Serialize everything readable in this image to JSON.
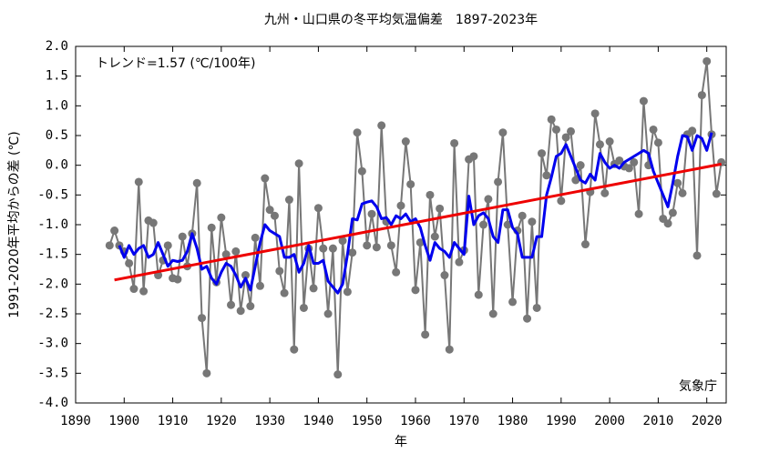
{
  "chart_data": {
    "type": "line",
    "title": "九州・山口県の冬平均気温偏差　1897-2023年",
    "xlabel": "年",
    "ylabel": "1991-2020年平均からの差 (℃)",
    "annotations": [
      "トレンド=1.57 (℃/100年)",
      "気象庁"
    ],
    "xlim": [
      1890,
      2024
    ],
    "xticks": [
      1890,
      1900,
      1910,
      1920,
      1930,
      1940,
      1950,
      1960,
      1970,
      1980,
      1990,
      2000,
      2010,
      2020
    ],
    "ylim": [
      -4,
      2
    ],
    "yticks": [
      {
        "value": 2,
        "label": "2.0"
      },
      1.5,
      {
        "value": 1,
        "label": "1.0"
      },
      0.5,
      {
        "value": 0,
        "label": "0.0"
      },
      -0.5,
      {
        "value": -1,
        "label": "-1.0"
      },
      -1.5,
      {
        "value": -2,
        "label": "-2.0"
      },
      -2.5,
      {
        "value": -3,
        "label": "-3.0"
      },
      -3.5,
      {
        "value": -4,
        "label": "-4.0"
      }
    ],
    "grid": false,
    "x": [
      1897,
      1898,
      1899,
      1900,
      1901,
      1902,
      1903,
      1904,
      1905,
      1906,
      1907,
      1908,
      1909,
      1910,
      1911,
      1912,
      1913,
      1914,
      1915,
      1916,
      1917,
      1918,
      1919,
      1920,
      1921,
      1922,
      1923,
      1924,
      1925,
      1926,
      1927,
      1928,
      1929,
      1930,
      1931,
      1932,
      1933,
      1934,
      1935,
      1936,
      1937,
      1938,
      1939,
      1940,
      1941,
      1942,
      1943,
      1944,
      1945,
      1946,
      1947,
      1948,
      1949,
      1950,
      1951,
      1952,
      1953,
      1954,
      1955,
      1956,
      1957,
      1958,
      1959,
      1960,
      1961,
      1962,
      1963,
      1964,
      1965,
      1966,
      1967,
      1968,
      1969,
      1970,
      1971,
      1972,
      1973,
      1974,
      1975,
      1976,
      1977,
      1978,
      1979,
      1980,
      1981,
      1982,
      1983,
      1984,
      1985,
      1986,
      1987,
      1988,
      1989,
      1990,
      1991,
      1992,
      1993,
      1994,
      1995,
      1996,
      1997,
      1998,
      1999,
      2000,
      2001,
      2002,
      2003,
      2004,
      2005,
      2006,
      2007,
      2008,
      2009,
      2010,
      2011,
      2012,
      2013,
      2014,
      2015,
      2016,
      2017,
      2018,
      2019,
      2020,
      2021,
      2022,
      2023
    ],
    "series": [
      {
        "color": "#777777",
        "markers": true,
        "values": [
          -1.35,
          -1.1,
          -1.35,
          -1.45,
          -1.65,
          -2.08,
          -0.28,
          -2.12,
          -0.93,
          -0.97,
          -1.85,
          -1.6,
          -1.35,
          -1.9,
          -1.92,
          -1.2,
          -1.7,
          -1.15,
          -0.3,
          -2.57,
          -3.5,
          -1.05,
          -1.97,
          -0.88,
          -1.5,
          -2.35,
          -1.45,
          -2.45,
          -1.85,
          -2.37,
          -1.22,
          -2.03,
          -0.22,
          -0.75,
          -0.85,
          -1.78,
          -2.15,
          -0.58,
          -3.1,
          0.03,
          -2.4,
          -1.4,
          -2.07,
          -0.72,
          -1.4,
          -2.5,
          -1.4,
          -3.52,
          -1.27,
          -2.13,
          -1.47,
          0.55,
          -0.1,
          -1.35,
          -0.82,
          -1.38,
          0.67,
          -0.95,
          -1.35,
          -1.8,
          -0.68,
          0.4,
          -0.32,
          -2.1,
          -1.3,
          -2.85,
          -0.5,
          -1.2,
          -0.73,
          -1.85,
          -3.1,
          0.37,
          -1.63,
          -1.43,
          0.1,
          0.15,
          -2.18,
          -1.0,
          -0.57,
          -2.5,
          -0.28,
          0.55,
          -1.0,
          -2.3,
          -1.1,
          -0.85,
          -2.58,
          -0.95,
          -2.4,
          0.2,
          -0.17,
          0.77,
          0.6,
          -0.6,
          0.47,
          0.57,
          -0.25,
          0.0,
          -1.33,
          -0.45,
          0.87,
          0.35,
          -0.47,
          0.4,
          0.02,
          0.08,
          -0.02,
          -0.05,
          0.05,
          -0.82,
          1.08,
          0.0,
          0.6,
          0.38,
          -0.9,
          -0.98,
          -0.8,
          -0.3,
          -0.47,
          0.52,
          0.58,
          -1.52,
          1.18,
          1.75,
          0.52,
          -0.48,
          0.05
        ]
      },
      {
        "color": "#0000ee",
        "markers": false,
        "values": [
          null,
          null,
          -1.35,
          -1.55,
          -1.35,
          -1.5,
          -1.4,
          -1.35,
          -1.55,
          -1.5,
          -1.3,
          -1.5,
          -1.7,
          -1.6,
          -1.62,
          -1.6,
          -1.45,
          -1.15,
          -1.4,
          -1.75,
          -1.7,
          -1.9,
          -2.0,
          -1.8,
          -1.65,
          -1.7,
          -1.85,
          -2.05,
          -1.9,
          -2.1,
          -1.7,
          -1.3,
          -1.0,
          -1.1,
          -1.15,
          -1.2,
          -1.55,
          -1.55,
          -1.5,
          -1.8,
          -1.65,
          -1.35,
          -1.65,
          -1.65,
          -1.6,
          -1.95,
          -2.05,
          -2.15,
          -2.0,
          -1.5,
          -0.9,
          -0.92,
          -0.65,
          -0.62,
          -0.6,
          -0.7,
          -0.9,
          -0.88,
          -1.0,
          -0.85,
          -0.9,
          -0.82,
          -0.95,
          -0.9,
          -1.05,
          -1.35,
          -1.6,
          -1.3,
          -1.4,
          -1.45,
          -1.55,
          -1.3,
          -1.4,
          -1.5,
          -0.52,
          -1.0,
          -0.85,
          -0.8,
          -0.9,
          -1.2,
          -1.3,
          -0.75,
          -0.75,
          -1.05,
          -1.15,
          -1.55,
          -1.55,
          -1.55,
          -1.2,
          -1.2,
          -0.5,
          -0.2,
          0.15,
          0.2,
          0.35,
          0.15,
          -0.05,
          -0.25,
          -0.3,
          -0.15,
          -0.25,
          0.2,
          0.05,
          -0.05,
          0.0,
          -0.05,
          0.05,
          0.1,
          0.15,
          0.2,
          0.25,
          0.2,
          -0.1,
          -0.3,
          -0.5,
          -0.7,
          -0.3,
          0.15,
          0.5,
          0.48,
          0.25,
          0.5,
          0.45,
          0.25,
          0.55,
          null,
          null
        ]
      },
      {
        "color": "#ee0000",
        "markers": false,
        "x": [
          1898,
          2023
        ],
        "values": [
          -1.93,
          0.02
        ]
      }
    ]
  }
}
